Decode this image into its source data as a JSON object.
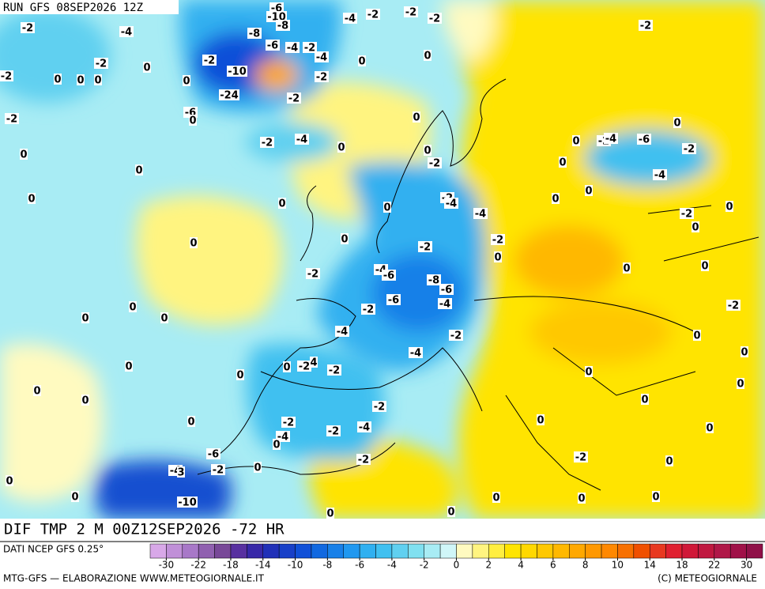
{
  "header": {
    "run": "RUN GFS 08SEP2026 12Z"
  },
  "map": {
    "field_title": "DIF TMP 2 M 00Z12SEP2026 -72 HR",
    "contour_labels": [
      "-2",
      "-4",
      "-6",
      "-10",
      "-8",
      "-8",
      "-6",
      "-4",
      "-2",
      "-4",
      "-4",
      "-2",
      "-2",
      "-2",
      "-2",
      "-2",
      "-10",
      "0",
      "0",
      "-2",
      "0",
      "0",
      "0",
      "-2",
      "0",
      "0",
      "-24",
      "-2",
      "-6",
      "0",
      "-2",
      "-2",
      "-4",
      "0",
      "0",
      "0",
      "-2",
      "-2",
      "0",
      "0",
      "-2",
      "-4",
      "-6",
      "-2",
      "0",
      "-4",
      "0",
      "0",
      "0",
      "0",
      "0",
      "-2",
      "-4",
      "-4",
      "0",
      "0",
      "-2",
      "0",
      "0",
      "0",
      "-2",
      "-2",
      "0",
      "0",
      "-2",
      "-4",
      "-6",
      "-8",
      "-6",
      "0",
      "0",
      "0",
      "0",
      "0",
      "-2",
      "-6",
      "-4",
      "-2",
      "-4",
      "-2",
      "-4",
      "0",
      "0",
      "0",
      "0",
      "0",
      "-2",
      "4",
      "-2",
      "0",
      "0",
      "0",
      "0",
      "-2",
      "0",
      "-2",
      "-2",
      "-4",
      "0",
      "0",
      "0",
      "-4",
      "0",
      "-6",
      "-2",
      "-2",
      "0",
      "0",
      "-4",
      "3",
      "-2",
      "0",
      "0",
      "-10",
      "0",
      "0",
      "0",
      "0",
      "0",
      "0",
      "0"
    ]
  },
  "legend": {
    "source": "DATI NCEP GFS 0.25°",
    "colors": [
      "#d8a8e8",
      "#c090d8",
      "#a878c8",
      "#9060b0",
      "#784898",
      "#5830a0",
      "#3828a8",
      "#2030b8",
      "#1840c8",
      "#1050d8",
      "#1068e0",
      "#1880e8",
      "#2098f0",
      "#30b0f0",
      "#40c0f0",
      "#60d0f0",
      "#80e0f0",
      "#a8ecf4",
      "#d0f6f8",
      "#fffac0",
      "#fff480",
      "#ffee40",
      "#ffe400",
      "#ffd800",
      "#ffc800",
      "#ffb800",
      "#ffa800",
      "#ff9800",
      "#ff8800",
      "#f87000",
      "#f05000",
      "#e83820",
      "#e02030",
      "#d01838",
      "#c01840",
      "#b01848",
      "#a01048",
      "#901048"
    ],
    "ticks": [
      -30,
      -22,
      -18,
      -14,
      -10,
      -8,
      -6,
      -4,
      -2,
      0,
      2,
      4,
      6,
      8,
      10,
      14,
      18,
      22,
      30
    ]
  },
  "footer": {
    "left": "MTG-GFS — ELABORAZIONE WWW.METEOGIORNALE.IT",
    "right": "(C) METEOGIORNALE"
  }
}
